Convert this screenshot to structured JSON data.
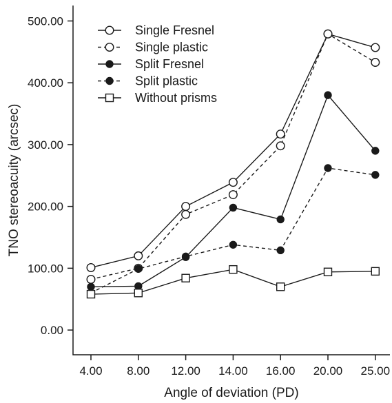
{
  "chart_data": {
    "type": "line",
    "xlabel": "Angle of deviation (PD)",
    "ylabel": "TNO stereoacuity (arcsec)",
    "categories": [
      "4.00",
      "8.00",
      "12.00",
      "14.00",
      "16.00",
      "20.00",
      "25.00"
    ],
    "y_ticks": [
      "0.00",
      "100.00",
      "200.00",
      "300.00",
      "400.00",
      "500.00"
    ],
    "ylim": [
      -40,
      525
    ],
    "grid": false,
    "legend_position": "top-left",
    "series": [
      {
        "name": "Single Fresnel",
        "values": [
          101,
          120,
          200,
          239,
          317,
          479,
          457
        ],
        "marker": "open-circle",
        "line": "solid"
      },
      {
        "name": "Single plastic",
        "values": [
          82,
          100,
          187,
          219,
          298,
          479,
          433
        ],
        "marker": "open-circle",
        "line": "dashed"
      },
      {
        "name": "Split Fresnel",
        "values": [
          70,
          71,
          118,
          198,
          179,
          380,
          290
        ],
        "marker": "filled-circle",
        "line": "solid"
      },
      {
        "name": "Split plastic",
        "values": [
          60,
          99,
          119,
          138,
          129,
          262,
          251
        ],
        "marker": "filled-circle",
        "line": "dashed"
      },
      {
        "name": "Without prisms",
        "values": [
          58,
          60,
          84,
          98,
          70,
          94,
          95
        ],
        "marker": "open-square",
        "line": "solid"
      }
    ],
    "colors": {
      "line": "#1a1a1a",
      "open_fill": "#ffffff",
      "filled": "#1a1a1a"
    }
  }
}
